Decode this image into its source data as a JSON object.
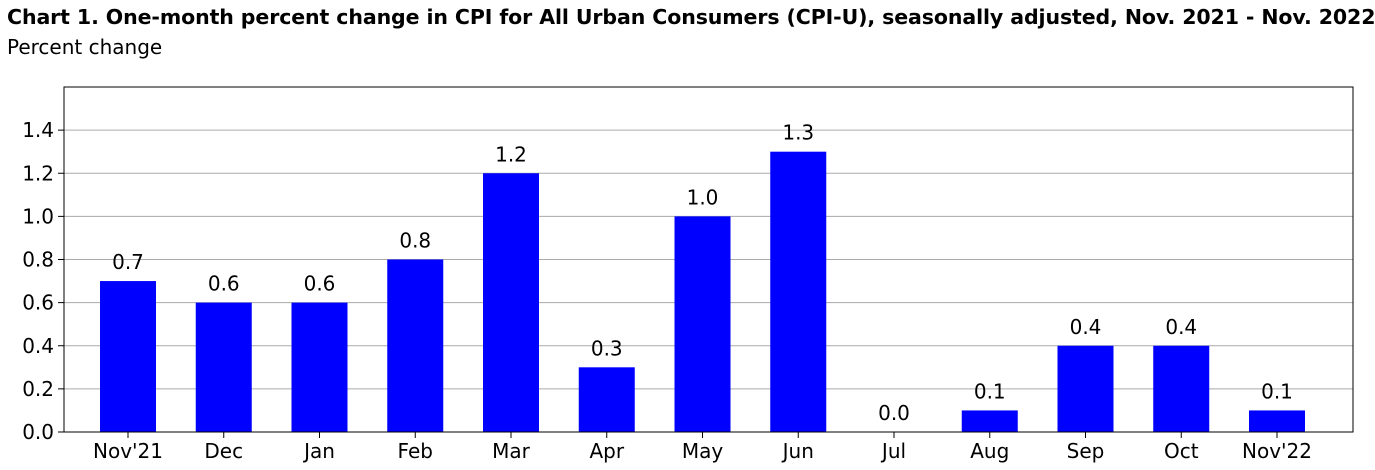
{
  "chart_data": {
    "type": "bar",
    "title": "Chart 1. One-month percent change in CPI for All Urban Consumers (CPI-U), seasonally adjusted, Nov. 2021 - Nov. 2022",
    "subtitle": "Percent change",
    "xlabel": "",
    "ylabel": "",
    "categories": [
      "Nov'21",
      "Dec",
      "Jan",
      "Feb",
      "Mar",
      "Apr",
      "May",
      "Jun",
      "Jul",
      "Aug",
      "Sep",
      "Oct",
      "Nov'22"
    ],
    "values": [
      0.7,
      0.6,
      0.6,
      0.8,
      1.2,
      0.3,
      1.0,
      1.3,
      0.0,
      0.1,
      0.4,
      0.4,
      0.1
    ],
    "data_labels": [
      "0.7",
      "0.6",
      "0.6",
      "0.8",
      "1.2",
      "0.3",
      "1.0",
      "1.3",
      "0.0",
      "0.1",
      "0.4",
      "0.4",
      "0.1"
    ],
    "ylim": [
      0,
      1.6
    ],
    "yticks": [
      0.0,
      0.2,
      0.4,
      0.6,
      0.8,
      1.0,
      1.2,
      1.4
    ],
    "ytick_labels": [
      "0.0",
      "0.2",
      "0.4",
      "0.6",
      "0.8",
      "1.0",
      "1.2",
      "1.4"
    ],
    "grid": true,
    "legend": "none",
    "bar_color": "#0000ff",
    "grid_color": "#aaaaaa"
  }
}
